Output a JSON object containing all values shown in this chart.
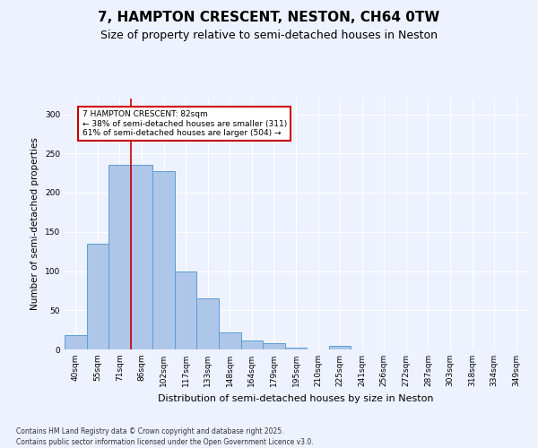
{
  "title_line1": "7, HAMPTON CRESCENT, NESTON, CH64 0TW",
  "title_line2": "Size of property relative to semi-detached houses in Neston",
  "xlabel": "Distribution of semi-detached houses by size in Neston",
  "ylabel": "Number of semi-detached properties",
  "categories": [
    "40sqm",
    "55sqm",
    "71sqm",
    "86sqm",
    "102sqm",
    "117sqm",
    "133sqm",
    "148sqm",
    "164sqm",
    "179sqm",
    "195sqm",
    "210sqm",
    "225sqm",
    "241sqm",
    "256sqm",
    "272sqm",
    "287sqm",
    "303sqm",
    "318sqm",
    "334sqm",
    "349sqm"
  ],
  "values": [
    18,
    135,
    235,
    235,
    228,
    100,
    65,
    22,
    11,
    8,
    2,
    0,
    5,
    0,
    0,
    0,
    0,
    0,
    0,
    0,
    0
  ],
  "bar_color": "#aec6e8",
  "bar_edge_color": "#5a9fd4",
  "vline_x_index": 2.5,
  "vline_color": "#cc0000",
  "annotation_line1": "7 HAMPTON CRESCENT: 82sqm",
  "annotation_line2": "← 38% of semi-detached houses are smaller (311)",
  "annotation_line3": "61% of semi-detached houses are larger (504) →",
  "annotation_box_color": "#cc0000",
  "annotation_box_bg": "#ffffff",
  "annotation_fontsize": 6.5,
  "title_fontsize1": 11,
  "title_fontsize2": 9,
  "xlabel_fontsize": 8,
  "ylabel_fontsize": 7.5,
  "tick_fontsize": 6.5,
  "ylim": [
    0,
    320
  ],
  "yticks": [
    0,
    50,
    100,
    150,
    200,
    250,
    300
  ],
  "footer_line1": "Contains HM Land Registry data © Crown copyright and database right 2025.",
  "footer_line2": "Contains public sector information licensed under the Open Government Licence v3.0.",
  "footer_fontsize": 5.5,
  "background_color": "#eef2ff",
  "plot_bg_color": "#eef2ff"
}
